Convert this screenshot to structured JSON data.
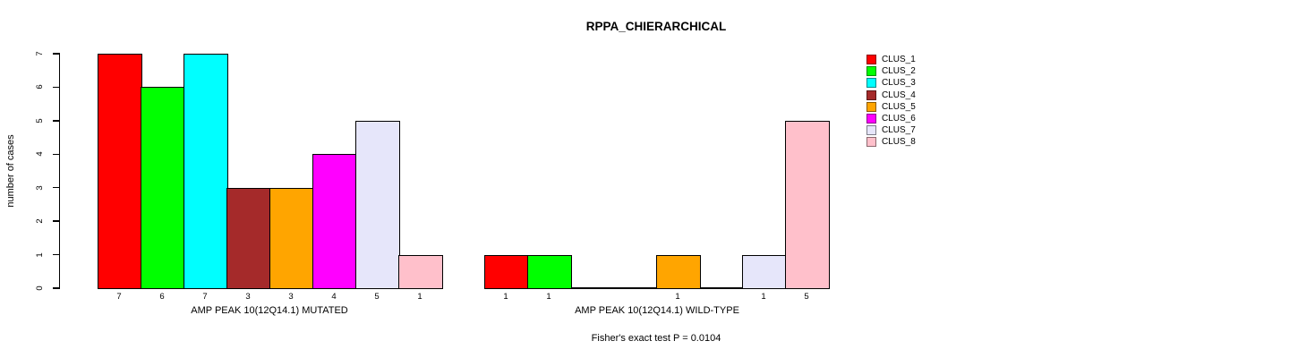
{
  "title": "RPPA_CHIERARCHICAL",
  "footer": "Fisher's exact test P = 0.0104",
  "y_axis": {
    "label": "number of cases",
    "ticks": [
      "0",
      "1",
      "2",
      "3",
      "4",
      "5",
      "6",
      "7"
    ]
  },
  "legend": {
    "position": "right",
    "entries": [
      {
        "label": "CLUS_1",
        "color": "#FF0000"
      },
      {
        "label": "CLUS_2",
        "color": "#00FF00"
      },
      {
        "label": "CLUS_3",
        "color": "#00FFFF"
      },
      {
        "label": "CLUS_4",
        "color": "#A52A2A"
      },
      {
        "label": "CLUS_5",
        "color": "#FFA500"
      },
      {
        "label": "CLUS_6",
        "color": "#FF00FF"
      },
      {
        "label": "CLUS_7",
        "color": "#E6E6FA"
      },
      {
        "label": "CLUS_8",
        "color": "#FFC0CB"
      }
    ]
  },
  "chart_data": {
    "type": "bar",
    "title": "RPPA_CHIERARCHICAL",
    "ylabel": "number of cases",
    "ylim": [
      0,
      7
    ],
    "yticks": [
      0,
      1,
      2,
      3,
      4,
      5,
      6,
      7
    ],
    "grid": false,
    "legend_position": "right",
    "categories": [
      "CLUS_1",
      "CLUS_2",
      "CLUS_3",
      "CLUS_4",
      "CLUS_5",
      "CLUS_6",
      "CLUS_7",
      "CLUS_8"
    ],
    "palette": [
      "#FF0000",
      "#00FF00",
      "#00FFFF",
      "#A52A2A",
      "#FFA500",
      "#FF00FF",
      "#E6E6FA",
      "#FFC0CB"
    ],
    "groups": [
      {
        "xlabel": "AMP PEAK 10(12Q14.1) MUTATED",
        "values": [
          7,
          6,
          7,
          3,
          3,
          4,
          5,
          1
        ],
        "bar_labels": [
          "7",
          "6",
          "7",
          "3",
          "3",
          "4",
          "5",
          "1"
        ]
      },
      {
        "xlabel": "AMP PEAK 10(12Q14.1) WILD-TYPE",
        "values": [
          1,
          1,
          0,
          0,
          1,
          0,
          1,
          5
        ],
        "bar_labels": [
          "1",
          "1",
          "",
          "",
          "1",
          "",
          "1",
          "5"
        ]
      }
    ],
    "annotation": "Fisher's exact test P = 0.0104"
  }
}
